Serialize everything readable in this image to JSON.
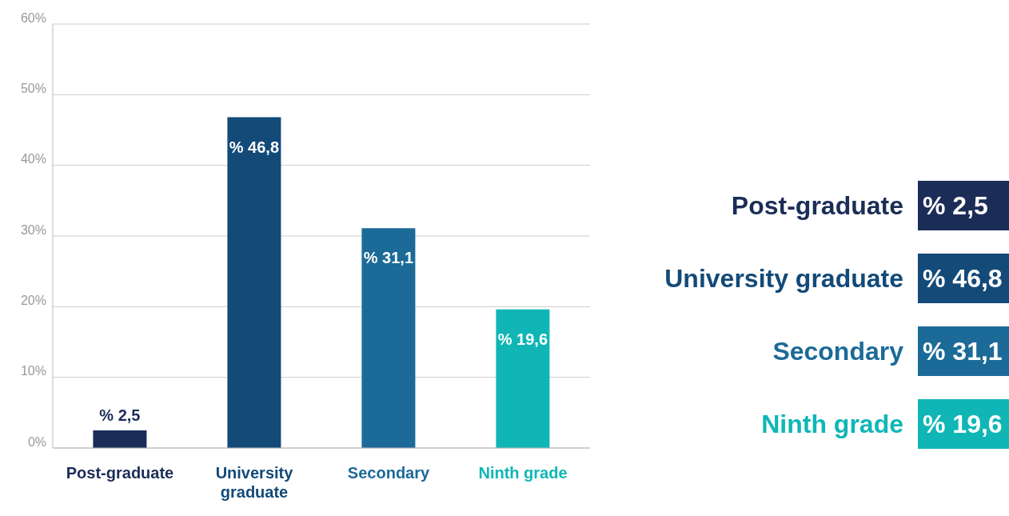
{
  "chart_data": {
    "type": "bar",
    "categories": [
      "Post-graduate",
      "University graduate",
      "Secondary",
      "Ninth grade"
    ],
    "values": [
      2.5,
      46.8,
      31.1,
      19.6
    ],
    "colors": [
      "#1b2d57",
      "#134a78",
      "#1c6a98",
      "#10b6b6"
    ],
    "value_labels": [
      "% 2,5",
      "% 46,8",
      "% 31,1",
      "% 19,6"
    ],
    "ylim": [
      0,
      60
    ],
    "yticks": [
      {
        "value": 0,
        "label": "0%"
      },
      {
        "value": 10,
        "label": "10%"
      },
      {
        "value": 20,
        "label": "20%"
      },
      {
        "value": 30,
        "label": "30%"
      },
      {
        "value": 40,
        "label": "40%"
      },
      {
        "value": 50,
        "label": "50%"
      },
      {
        "value": 60,
        "label": "60%"
      }
    ],
    "grid": "y"
  }
}
